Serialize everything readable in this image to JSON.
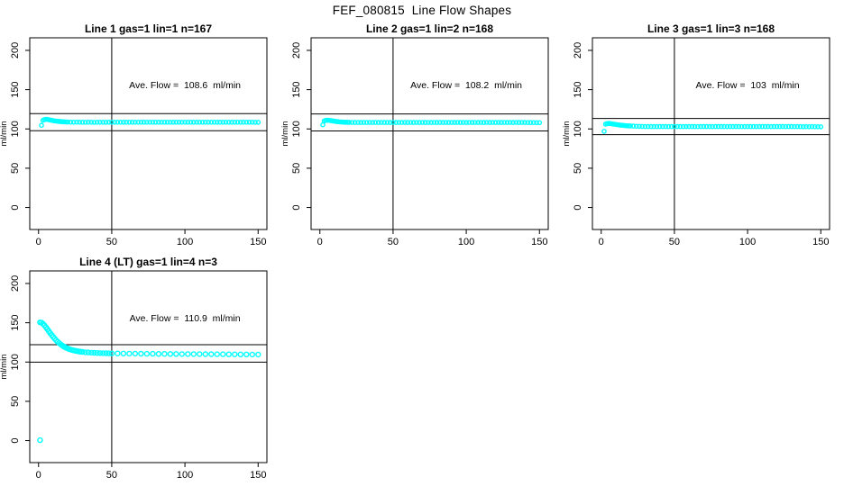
{
  "page_title": "FEF_080815  Line Flow Shapes",
  "colors": {
    "points": "#00FFFF",
    "axis": "#000000",
    "background": "#FFFFFF"
  },
  "chart_data": [
    {
      "type": "scatter",
      "title": "Line 1 gas=1 lin=1 n=167",
      "annotation": "Ave. Flow =  108.6  ml/min",
      "ave_flow": 108.6,
      "xlabel": "",
      "ylabel": "ml/min",
      "xlim": [
        0,
        150
      ],
      "ylim": [
        0,
        200
      ],
      "xticks": [
        0,
        50,
        100,
        150
      ],
      "yticks": [
        0,
        50,
        100,
        150,
        200
      ],
      "vline": 50,
      "hlines": [
        119.5,
        97.7
      ],
      "marker": "open-circle",
      "color": "#00FFFF",
      "points": [
        [
          2,
          104.6
        ],
        [
          3,
          111
        ],
        [
          4,
          111.9
        ],
        [
          5,
          112.2
        ],
        [
          6,
          112.1
        ],
        [
          7,
          111.8
        ],
        [
          8,
          111.4
        ],
        [
          9,
          111
        ],
        [
          10,
          110.6
        ],
        [
          11,
          110.3
        ],
        [
          12,
          110
        ],
        [
          13,
          109.8
        ],
        [
          14,
          109.6
        ],
        [
          15,
          109.4
        ],
        [
          16,
          109.2
        ],
        [
          17,
          109.1
        ],
        [
          18,
          109
        ],
        [
          19,
          108.9
        ],
        [
          20,
          108.8
        ],
        [
          22,
          108.7
        ],
        [
          24,
          108.6
        ],
        [
          26,
          108.7
        ],
        [
          28,
          108.5
        ],
        [
          30,
          108.6
        ],
        [
          32,
          108.4
        ],
        [
          34,
          108.6
        ],
        [
          36,
          108.5
        ],
        [
          38,
          108.3
        ],
        [
          40,
          108.6
        ],
        [
          42,
          108.5
        ],
        [
          44,
          108.6
        ],
        [
          46,
          108.4
        ],
        [
          48,
          108.6
        ],
        [
          50,
          108.5
        ],
        [
          52,
          108.6
        ],
        [
          54,
          108.5
        ],
        [
          56,
          108.6
        ],
        [
          58,
          108.5
        ],
        [
          60,
          108.6
        ],
        [
          62,
          108.5
        ],
        [
          64,
          108.6
        ],
        [
          66,
          108.5
        ],
        [
          68,
          108.6
        ],
        [
          70,
          108.5
        ],
        [
          72,
          108.6
        ],
        [
          74,
          108.5
        ],
        [
          76,
          108.6
        ],
        [
          78,
          108.5
        ],
        [
          80,
          108.6
        ],
        [
          82,
          108.5
        ],
        [
          84,
          108.6
        ],
        [
          86,
          108.5
        ],
        [
          88,
          108.6
        ],
        [
          90,
          108.5
        ],
        [
          92,
          108.6
        ],
        [
          94,
          108.5
        ],
        [
          96,
          108.6
        ],
        [
          98,
          108.5
        ],
        [
          100,
          108.6
        ],
        [
          102,
          108.5
        ],
        [
          104,
          108.6
        ],
        [
          106,
          108.5
        ],
        [
          108,
          108.6
        ],
        [
          110,
          108.5
        ],
        [
          112,
          108.6
        ],
        [
          114,
          108.5
        ],
        [
          116,
          108.6
        ],
        [
          118,
          108.5
        ],
        [
          120,
          108.6
        ],
        [
          122,
          108.5
        ],
        [
          124,
          108.6
        ],
        [
          126,
          108.5
        ],
        [
          128,
          108.6
        ],
        [
          130,
          108.5
        ],
        [
          132,
          108.6
        ],
        [
          134,
          108.5
        ],
        [
          136,
          108.6
        ],
        [
          138,
          108.5
        ],
        [
          140,
          108.6
        ],
        [
          142,
          108.5
        ],
        [
          144,
          108.6
        ],
        [
          146,
          108.5
        ],
        [
          148,
          108.4
        ],
        [
          150,
          108.4
        ]
      ]
    },
    {
      "type": "scatter",
      "title": "Line 2 gas=1 lin=2 n=168",
      "annotation": "Ave. Flow =  108.2  ml/min",
      "ave_flow": 108.2,
      "xlabel": "",
      "ylabel": "ml/min",
      "xlim": [
        0,
        150
      ],
      "ylim": [
        0,
        200
      ],
      "xticks": [
        0,
        50,
        100,
        150
      ],
      "yticks": [
        0,
        50,
        100,
        150,
        200
      ],
      "vline": 50,
      "hlines": [
        119.0,
        97.4
      ],
      "marker": "open-circle",
      "color": "#00FFFF",
      "points": [
        [
          2,
          105.2
        ],
        [
          3,
          110.2
        ],
        [
          4,
          110.9
        ],
        [
          5,
          111.1
        ],
        [
          6,
          111
        ],
        [
          7,
          110.7
        ],
        [
          8,
          110.4
        ],
        [
          9,
          110.1
        ],
        [
          10,
          109.8
        ],
        [
          11,
          109.5
        ],
        [
          12,
          109.3
        ],
        [
          13,
          109.1
        ],
        [
          14,
          108.9
        ],
        [
          15,
          108.8
        ],
        [
          16,
          108.7
        ],
        [
          17,
          108.6
        ],
        [
          18,
          108.5
        ],
        [
          19,
          108.4
        ],
        [
          20,
          108.4
        ],
        [
          22,
          108.3
        ],
        [
          24,
          108.2
        ],
        [
          26,
          108.3
        ],
        [
          28,
          108.2
        ],
        [
          30,
          108.3
        ],
        [
          32,
          108.2
        ],
        [
          34,
          108.3
        ],
        [
          36,
          108.2
        ],
        [
          38,
          108.3
        ],
        [
          40,
          108.2
        ],
        [
          42,
          108.3
        ],
        [
          44,
          108.2
        ],
        [
          46,
          108.3
        ],
        [
          48,
          108.2
        ],
        [
          50,
          108.3
        ],
        [
          52,
          108.2
        ],
        [
          54,
          108.3
        ],
        [
          56,
          108.2
        ],
        [
          58,
          108.3
        ],
        [
          60,
          108.2
        ],
        [
          62,
          108.3
        ],
        [
          64,
          108.2
        ],
        [
          66,
          108.3
        ],
        [
          68,
          108.2
        ],
        [
          70,
          108.3
        ],
        [
          72,
          108.2
        ],
        [
          74,
          108.3
        ],
        [
          76,
          108.2
        ],
        [
          78,
          108.3
        ],
        [
          80,
          108.2
        ],
        [
          82,
          108.3
        ],
        [
          84,
          108.2
        ],
        [
          86,
          108.3
        ],
        [
          88,
          108.2
        ],
        [
          90,
          108.3
        ],
        [
          92,
          108.2
        ],
        [
          94,
          108.3
        ],
        [
          96,
          108.2
        ],
        [
          98,
          108.3
        ],
        [
          100,
          108.2
        ],
        [
          102,
          108.3
        ],
        [
          104,
          108.2
        ],
        [
          106,
          108.3
        ],
        [
          108,
          108.2
        ],
        [
          110,
          108.3
        ],
        [
          112,
          108.2
        ],
        [
          114,
          108.3
        ],
        [
          116,
          108.2
        ],
        [
          118,
          108.3
        ],
        [
          120,
          108.2
        ],
        [
          122,
          108.3
        ],
        [
          124,
          108.2
        ],
        [
          126,
          108.3
        ],
        [
          128,
          108.2
        ],
        [
          130,
          108.3
        ],
        [
          132,
          108.2
        ],
        [
          134,
          108.3
        ],
        [
          136,
          108.2
        ],
        [
          138,
          108.3
        ],
        [
          140,
          108.2
        ],
        [
          142,
          108.1
        ],
        [
          144,
          108.1
        ],
        [
          146,
          108.1
        ],
        [
          148,
          108
        ],
        [
          150,
          108
        ]
      ]
    },
    {
      "type": "scatter",
      "title": "Line 3 gas=1 lin=3 n=168",
      "annotation": "Ave. Flow =  103  ml/min",
      "ave_flow": 103,
      "xlabel": "",
      "ylabel": "ml/min",
      "xlim": [
        0,
        150
      ],
      "ylim": [
        0,
        200
      ],
      "xticks": [
        0,
        50,
        100,
        150
      ],
      "yticks": [
        0,
        50,
        100,
        150,
        200
      ],
      "vline": 50,
      "hlines": [
        113.3,
        92.7
      ],
      "marker": "open-circle",
      "color": "#00FFFF",
      "points": [
        [
          2,
          97
        ],
        [
          3,
          106.2
        ],
        [
          4,
          106.8
        ],
        [
          5,
          107
        ],
        [
          6,
          106.9
        ],
        [
          7,
          106.6
        ],
        [
          8,
          106.3
        ],
        [
          9,
          106
        ],
        [
          10,
          105.7
        ],
        [
          11,
          105.4
        ],
        [
          12,
          105.1
        ],
        [
          13,
          104.9
        ],
        [
          14,
          104.7
        ],
        [
          15,
          104.5
        ],
        [
          16,
          104.3
        ],
        [
          17,
          104.1
        ],
        [
          18,
          104
        ],
        [
          19,
          103.9
        ],
        [
          20,
          103.8
        ],
        [
          22,
          103.6
        ],
        [
          24,
          103.4
        ],
        [
          26,
          103.3
        ],
        [
          28,
          103.2
        ],
        [
          30,
          103.1
        ],
        [
          32,
          103
        ],
        [
          34,
          103.1
        ],
        [
          36,
          103
        ],
        [
          38,
          102.9
        ],
        [
          40,
          103
        ],
        [
          42,
          103.1
        ],
        [
          44,
          103
        ],
        [
          46,
          102.9
        ],
        [
          48,
          103
        ],
        [
          50,
          103
        ],
        [
          52,
          103.1
        ],
        [
          54,
          103
        ],
        [
          56,
          102.9
        ],
        [
          58,
          103
        ],
        [
          60,
          103
        ],
        [
          62,
          103.1
        ],
        [
          64,
          103
        ],
        [
          66,
          102.9
        ],
        [
          68,
          103
        ],
        [
          70,
          103
        ],
        [
          72,
          103.1
        ],
        [
          74,
          103
        ],
        [
          76,
          102.9
        ],
        [
          78,
          103
        ],
        [
          80,
          103
        ],
        [
          82,
          103.1
        ],
        [
          84,
          103
        ],
        [
          86,
          102.9
        ],
        [
          88,
          103
        ],
        [
          90,
          103
        ],
        [
          92,
          103.1
        ],
        [
          94,
          103
        ],
        [
          96,
          102.9
        ],
        [
          98,
          103
        ],
        [
          100,
          103
        ],
        [
          102,
          103.1
        ],
        [
          104,
          103
        ],
        [
          106,
          102.9
        ],
        [
          108,
          103
        ],
        [
          110,
          103
        ],
        [
          112,
          103.1
        ],
        [
          114,
          103
        ],
        [
          116,
          102.9
        ],
        [
          118,
          103
        ],
        [
          120,
          103
        ],
        [
          122,
          103.1
        ],
        [
          124,
          103
        ],
        [
          126,
          102.9
        ],
        [
          128,
          103
        ],
        [
          130,
          103
        ],
        [
          132,
          102.9
        ],
        [
          134,
          103
        ],
        [
          136,
          102.9
        ],
        [
          138,
          102.8
        ],
        [
          140,
          102.9
        ],
        [
          142,
          102.8
        ],
        [
          144,
          102.9
        ],
        [
          146,
          102.8
        ],
        [
          148,
          102.8
        ],
        [
          150,
          102.7
        ]
      ]
    },
    {
      "type": "scatter",
      "title": "Line 4 (LT) gas=1 lin=4 n=3",
      "annotation": "Ave. Flow =  110.9  ml/min",
      "ave_flow": 110.9,
      "xlabel": "",
      "ylabel": "ml/min",
      "xlim": [
        0,
        150
      ],
      "ylim": [
        0,
        200
      ],
      "xticks": [
        0,
        50,
        100,
        150
      ],
      "yticks": [
        0,
        50,
        100,
        150,
        200
      ],
      "vline": 50,
      "hlines": [
        122.0,
        99.8
      ],
      "marker": "open-circle",
      "color": "#00FFFF",
      "marker_radius": 2.5,
      "points": [
        [
          1,
          0.5
        ],
        [
          1,
          150.5
        ],
        [
          2,
          150.2
        ],
        [
          3,
          148.8
        ],
        [
          4,
          146.8
        ],
        [
          5,
          144.4
        ],
        [
          6,
          141.9
        ],
        [
          7,
          139.3
        ],
        [
          8,
          136.8
        ],
        [
          9,
          134.3
        ],
        [
          10,
          132
        ],
        [
          11,
          129.8
        ],
        [
          12,
          127.8
        ],
        [
          13,
          125.9
        ],
        [
          14,
          124.2
        ],
        [
          15,
          122.7
        ],
        [
          16,
          121.3
        ],
        [
          17,
          120.1
        ],
        [
          18,
          119
        ],
        [
          19,
          118.1
        ],
        [
          20,
          117.2
        ],
        [
          21,
          116.5
        ],
        [
          22,
          115.9
        ],
        [
          23,
          115.3
        ],
        [
          24,
          114.8
        ],
        [
          25,
          114.4
        ],
        [
          26,
          114
        ],
        [
          27,
          113.7
        ],
        [
          28,
          113.4
        ],
        [
          29,
          113.1
        ],
        [
          30,
          112.9
        ],
        [
          32,
          112.5
        ],
        [
          34,
          112.2
        ],
        [
          36,
          111.9
        ],
        [
          38,
          111.7
        ],
        [
          40,
          111.5
        ],
        [
          42,
          111.4
        ],
        [
          44,
          111.3
        ],
        [
          46,
          111.2
        ],
        [
          48,
          111.1
        ],
        [
          50,
          111
        ],
        [
          54,
          110.9
        ],
        [
          58,
          110.8
        ],
        [
          62,
          110.7
        ],
        [
          66,
          110.7
        ],
        [
          70,
          110.6
        ],
        [
          74,
          110.5
        ],
        [
          78,
          110.5
        ],
        [
          82,
          110.4
        ],
        [
          86,
          110.4
        ],
        [
          90,
          110.3
        ],
        [
          94,
          110.3
        ],
        [
          98,
          110.2
        ],
        [
          102,
          110.2
        ],
        [
          106,
          110.1
        ],
        [
          110,
          110.1
        ],
        [
          114,
          110
        ],
        [
          118,
          110
        ],
        [
          122,
          109.9
        ],
        [
          126,
          109.9
        ],
        [
          130,
          109.8
        ],
        [
          134,
          109.8
        ],
        [
          138,
          109.7
        ],
        [
          142,
          109.7
        ],
        [
          146,
          109.6
        ],
        [
          150,
          109.6
        ]
      ]
    }
  ]
}
